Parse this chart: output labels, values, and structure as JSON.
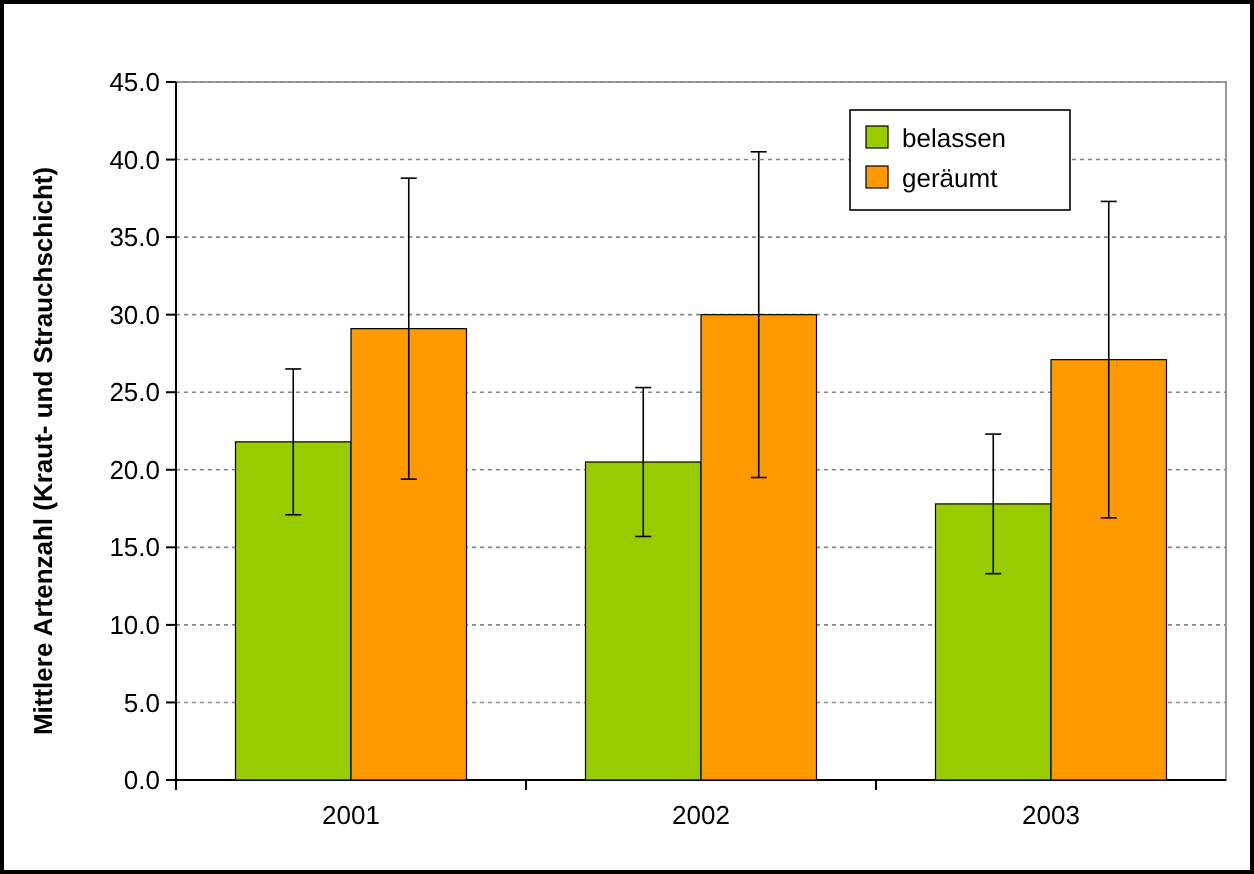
{
  "chart_data": {
    "type": "bar",
    "ylabel": "Mittlere Artenzahl (Kraut- und Strauchschicht)",
    "categories": [
      "2001",
      "2002",
      "2003"
    ],
    "series": [
      {
        "name": "belassen",
        "color": "#99cc00",
        "values": [
          21.8,
          20.5,
          17.8
        ],
        "errors": [
          4.7,
          4.8,
          4.5
        ]
      },
      {
        "name": "geräumt",
        "color": "#ff9900",
        "values": [
          29.1,
          30.0,
          27.1
        ],
        "errors": [
          9.7,
          10.5,
          10.2
        ]
      }
    ],
    "ylim": [
      0,
      45
    ],
    "yticks": [
      {
        "value": 0,
        "label": "0.0"
      },
      {
        "value": 5,
        "label": "5.0"
      },
      {
        "value": 10,
        "label": "10.0"
      },
      {
        "value": 15,
        "label": "15.0"
      },
      {
        "value": 20,
        "label": "20.0"
      },
      {
        "value": 25,
        "label": "25.0"
      },
      {
        "value": 30,
        "label": "30.0"
      },
      {
        "value": 35,
        "label": "35.0"
      },
      {
        "value": 40,
        "label": "40.0"
      },
      {
        "value": 45,
        "label": "45.0"
      }
    ],
    "grid": "y",
    "legend": "top right"
  }
}
